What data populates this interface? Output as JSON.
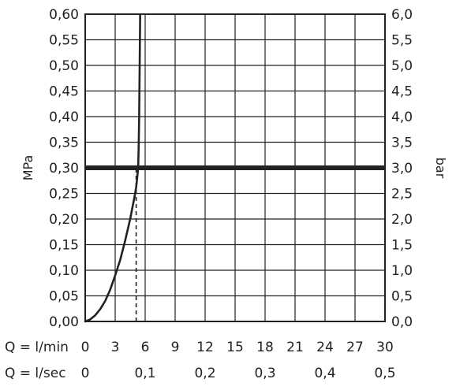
{
  "chart_data": {
    "type": "line",
    "left_axis": {
      "label": "MPa",
      "ylim": [
        0,
        0.6
      ],
      "ticks": [
        "0,00",
        "0,05",
        "0,10",
        "0,15",
        "0,20",
        "0,25",
        "0,30",
        "0,35",
        "0,40",
        "0,45",
        "0,50",
        "0,55",
        "0,60"
      ]
    },
    "right_axis": {
      "label": "bar",
      "ylim": [
        0,
        6
      ],
      "ticks": [
        "0,0",
        "0,5",
        "1,0",
        "1,5",
        "2,0",
        "2,5",
        "3,0",
        "3,5",
        "4,0",
        "4,5",
        "5,0",
        "5,5",
        "6,0"
      ]
    },
    "x_axis": {
      "label": "Q = l/min",
      "xlim": [
        0,
        30
      ],
      "ticks": [
        "0",
        "3",
        "6",
        "9",
        "12",
        "15",
        "18",
        "21",
        "24",
        "27",
        "30"
      ]
    },
    "x_axis_secondary": {
      "label": "Q = l/sec",
      "ticks": [
        {
          "value": 0,
          "label": "0"
        },
        {
          "value": 6,
          "label": "0,1"
        },
        {
          "value": 12,
          "label": "0,2"
        },
        {
          "value": 18,
          "label": "0,3"
        },
        {
          "value": 24,
          "label": "0,4"
        },
        {
          "value": 30,
          "label": "0,5"
        }
      ]
    },
    "grid": true,
    "series": [
      {
        "x": [
          0,
          0.5,
          1,
          1.5,
          2,
          2.5,
          3,
          3.5,
          4,
          4.5,
          5,
          5.1,
          5.2,
          5.3,
          5.35,
          5.4,
          5.45,
          5.5
        ],
        "y": [
          0,
          0.004,
          0.012,
          0.024,
          0.04,
          0.062,
          0.09,
          0.12,
          0.158,
          0.2,
          0.25,
          0.262,
          0.28,
          0.3,
          0.34,
          0.4,
          0.5,
          0.6
        ]
      }
    ],
    "reference_line": {
      "y": 0.3
    },
    "marker_line": {
      "x": 5.1,
      "y_from": 0,
      "y_to": 0.3
    }
  }
}
